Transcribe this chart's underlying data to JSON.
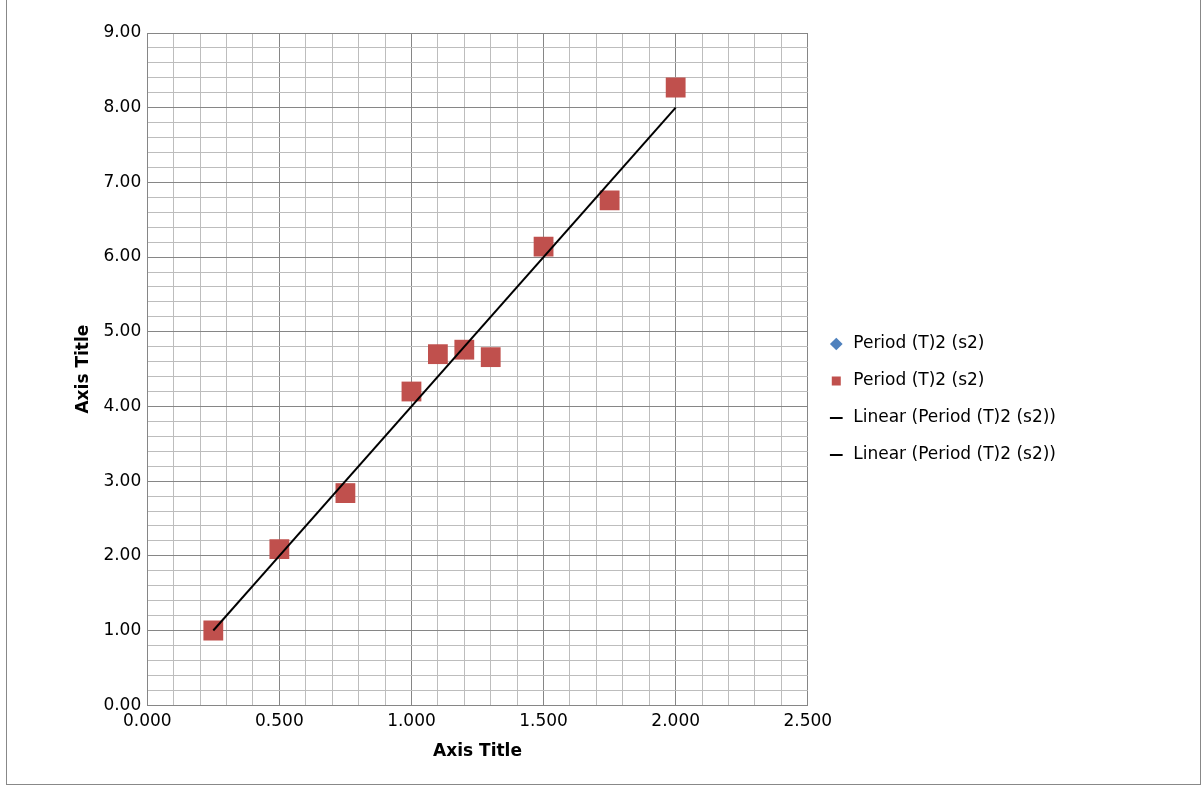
{
  "chart_data": {
    "type": "scatter",
    "xlabel": "Axis Title",
    "ylabel": "Axis Title",
    "grid": true,
    "legend": "right",
    "xlim": [
      0,
      2.5
    ],
    "xticks": [
      {
        "value": 0,
        "label": "0.000"
      },
      {
        "value": 0.1,
        "label": null
      },
      {
        "value": 0.2,
        "label": null
      },
      {
        "value": 0.3,
        "label": null
      },
      {
        "value": 0.4,
        "label": null
      },
      {
        "value": 0.5,
        "label": "0.500"
      },
      {
        "value": 0.6,
        "label": null
      },
      {
        "value": 0.7,
        "label": null
      },
      {
        "value": 0.8,
        "label": null
      },
      {
        "value": 0.9,
        "label": null
      },
      {
        "value": 1,
        "label": "1.000"
      },
      {
        "value": 1.1,
        "label": null
      },
      {
        "value": 1.2,
        "label": null
      },
      {
        "value": 1.3,
        "label": null
      },
      {
        "value": 1.4,
        "label": null
      },
      {
        "value": 1.5,
        "label": "1.500"
      },
      {
        "value": 1.6,
        "label": null
      },
      {
        "value": 1.7,
        "label": null
      },
      {
        "value": 1.8,
        "label": null
      },
      {
        "value": 1.9,
        "label": null
      },
      {
        "value": 2,
        "label": "2.000"
      },
      {
        "value": 2.1,
        "label": null
      },
      {
        "value": 2.2,
        "label": null
      },
      {
        "value": 2.3,
        "label": null
      },
      {
        "value": 2.4,
        "label": null
      },
      {
        "value": 2.5,
        "label": "2.500"
      }
    ],
    "ylim": [
      0,
      9
    ],
    "yticks": [
      {
        "value": 0,
        "label": "0.00"
      },
      {
        "value": 0.2,
        "label": null
      },
      {
        "value": 0.4,
        "label": null
      },
      {
        "value": 0.6,
        "label": null
      },
      {
        "value": 0.8,
        "label": null
      },
      {
        "value": 1,
        "label": "1.00"
      },
      {
        "value": 1.2,
        "label": null
      },
      {
        "value": 1.4,
        "label": null
      },
      {
        "value": 1.6,
        "label": null
      },
      {
        "value": 1.8,
        "label": null
      },
      {
        "value": 2,
        "label": "2.00"
      },
      {
        "value": 2.2,
        "label": null
      },
      {
        "value": 2.4,
        "label": null
      },
      {
        "value": 2.6,
        "label": null
      },
      {
        "value": 2.8,
        "label": null
      },
      {
        "value": 3,
        "label": "3.00"
      },
      {
        "value": 3.2,
        "label": null
      },
      {
        "value": 3.4,
        "label": null
      },
      {
        "value": 3.6,
        "label": null
      },
      {
        "value": 3.8,
        "label": null
      },
      {
        "value": 4,
        "label": "4.00"
      },
      {
        "value": 4.2,
        "label": null
      },
      {
        "value": 4.4,
        "label": null
      },
      {
        "value": 4.6,
        "label": null
      },
      {
        "value": 4.8,
        "label": null
      },
      {
        "value": 5,
        "label": "5.00"
      },
      {
        "value": 5.2,
        "label": null
      },
      {
        "value": 5.4,
        "label": null
      },
      {
        "value": 5.6,
        "label": null
      },
      {
        "value": 5.8,
        "label": null
      },
      {
        "value": 6,
        "label": "6.00"
      },
      {
        "value": 6.2,
        "label": null
      },
      {
        "value": 6.4,
        "label": null
      },
      {
        "value": 6.6,
        "label": null
      },
      {
        "value": 6.8,
        "label": null
      },
      {
        "value": 7,
        "label": "7.00"
      },
      {
        "value": 7.2,
        "label": null
      },
      {
        "value": 7.4,
        "label": null
      },
      {
        "value": 7.6,
        "label": null
      },
      {
        "value": 7.8,
        "label": null
      },
      {
        "value": 8,
        "label": "8.00"
      },
      {
        "value": 8.2,
        "label": null
      },
      {
        "value": 8.4,
        "label": null
      },
      {
        "value": 8.6,
        "label": null
      },
      {
        "value": 8.8,
        "label": null
      },
      {
        "value": 9,
        "label": "9.00"
      }
    ],
    "series": [
      {
        "name": "Period (T)2 (s2)",
        "marker": "diamond",
        "color": "#4f81bd"
      },
      {
        "name": "Period (T)2 (s2)",
        "marker": "square",
        "color": "#c0504d",
        "x": [
          0.25,
          0.5,
          0.75,
          1.0,
          1.1,
          1.2,
          1.3,
          1.5,
          1.75,
          2.0
        ],
        "values": [
          1.0,
          2.09,
          2.84,
          4.2,
          4.7,
          4.76,
          4.66,
          6.14,
          6.76,
          8.27
        ]
      },
      {
        "name": "Linear (Period (T)2 (s2))",
        "type": "line",
        "marker": "none",
        "line_style": "solid",
        "color": "#000000",
        "x": [
          0.25,
          2.0
        ],
        "values": [
          1.0,
          8.0
        ]
      },
      {
        "name": "Linear (Period (T)2 (s2))",
        "type": "line",
        "marker": "none",
        "line_style": "solid",
        "color": "#000000"
      }
    ]
  }
}
